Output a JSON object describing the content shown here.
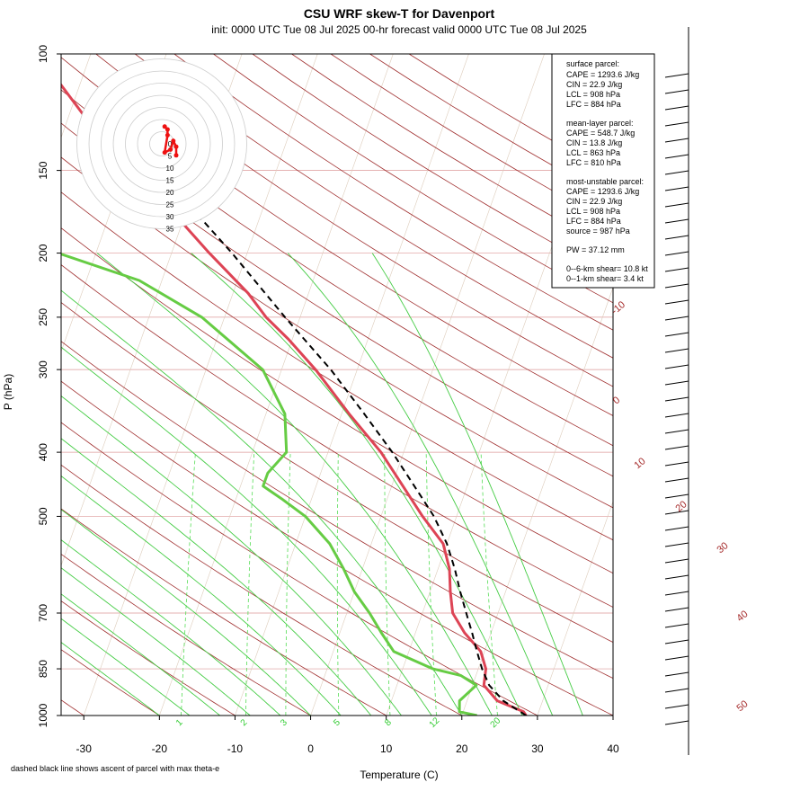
{
  "chart_data": {
    "type": "line",
    "title": "CSU WRF skew-T for Davenport",
    "subtitle": "init: 0000 UTC Tue 08 Jul 2025    00-hr forecast valid 0000 UTC Tue 08 Jul 2025",
    "xlabel": "Temperature (C)",
    "ylabel": "P (hPa)",
    "x_ticks": [
      -30,
      -20,
      -10,
      0,
      10,
      20,
      30,
      40
    ],
    "p_ticks": [
      100,
      150,
      200,
      250,
      300,
      400,
      500,
      700,
      850,
      1000
    ],
    "xlim": [
      -33,
      40
    ],
    "plim": [
      1000,
      100
    ],
    "footnote": "dashed black line shows ascent of parcel with max theta-e",
    "dry_adiabat_labels": [
      "-10",
      "0",
      "10",
      "20",
      "30",
      "40",
      "50"
    ],
    "mixing_ratio_labels": [
      "1",
      "2",
      "3",
      "5",
      "8",
      "12",
      "20"
    ],
    "series": [
      {
        "name": "temperature",
        "color": "#dd4455",
        "points": [
          [
            1000,
            28.5
          ],
          [
            987,
            28.0
          ],
          [
            950,
            24.0
          ],
          [
            900,
            21.5
          ],
          [
            850,
            21.0
          ],
          [
            800,
            19.5
          ],
          [
            750,
            16.5
          ],
          [
            700,
            14.0
          ],
          [
            650,
            12.7
          ],
          [
            600,
            11.5
          ],
          [
            550,
            9.5
          ],
          [
            500,
            5.5
          ],
          [
            450,
            1.5
          ],
          [
            400,
            -3.0
          ],
          [
            350,
            -9.0
          ],
          [
            300,
            -15.5
          ],
          [
            270,
            -20.5
          ],
          [
            250,
            -24.5
          ],
          [
            230,
            -28.0
          ],
          [
            200,
            -35.0
          ],
          [
            180,
            -40.0
          ],
          [
            150,
            -48.0
          ],
          [
            130,
            -56.0
          ],
          [
            110,
            -63.0
          ],
          [
            100,
            -67.0
          ]
        ]
      },
      {
        "name": "dewpoint",
        "color": "#66cc44",
        "points": [
          [
            1000,
            22.0
          ],
          [
            987,
            19.5
          ],
          [
            950,
            19.0
          ],
          [
            900,
            20.5
          ],
          [
            870,
            18.0
          ],
          [
            850,
            14.0
          ],
          [
            800,
            8.0
          ],
          [
            750,
            5.5
          ],
          [
            700,
            3.0
          ],
          [
            650,
            0.0
          ],
          [
            600,
            -2.5
          ],
          [
            550,
            -5.5
          ],
          [
            500,
            -10.0
          ],
          [
            470,
            -14.0
          ],
          [
            450,
            -17.0
          ],
          [
            430,
            -17.0
          ],
          [
            400,
            -15.5
          ],
          [
            350,
            -17.5
          ],
          [
            300,
            -22.5
          ],
          [
            250,
            -33.0
          ],
          [
            220,
            -43.0
          ],
          [
            200,
            -55.0
          ],
          [
            190,
            -65.0
          ],
          [
            180,
            -78.0
          ],
          [
            170,
            -83.0
          ],
          [
            160,
            -85.0
          ]
        ]
      },
      {
        "name": "parcel",
        "color": "#000000",
        "points": [
          [
            1000,
            28.5
          ],
          [
            950,
            24.8
          ],
          [
            900,
            22.2
          ],
          [
            850,
            20.5
          ],
          [
            800,
            19.0
          ],
          [
            750,
            17.5
          ],
          [
            700,
            15.8
          ],
          [
            650,
            14.0
          ],
          [
            600,
            12.2
          ],
          [
            550,
            10.0
          ],
          [
            500,
            7.0
          ],
          [
            450,
            3.0
          ],
          [
            400,
            -1.5
          ],
          [
            350,
            -7.0
          ],
          [
            300,
            -13.5
          ],
          [
            250,
            -22.0
          ],
          [
            200,
            -32.0
          ],
          [
            180,
            -37.0
          ],
          [
            160,
            -43.0
          ]
        ]
      }
    ],
    "indices": {
      "surface": {
        "header": "surface parcel:",
        "cape": "CAPE = 1293.6 J/kg",
        "cin": "CIN = 22.9 J/kg",
        "lcl": "LCL = 908 hPa",
        "lfc": "LFC = 884 hPa"
      },
      "mean_layer": {
        "header": "mean-layer parcel:",
        "cape": "CAPE = 548.7 J/kg",
        "cin": "CIN = 13.8 J/kg",
        "lcl": "LCL = 863 hPa",
        "lfc": "LFC = 810 hPa"
      },
      "most_unstable": {
        "header": "most-unstable parcel:",
        "cape": "CAPE = 1293.6 J/kg",
        "cin": "CIN = 22.9 J/kg",
        "lcl": "LCL = 908 hPa",
        "lfc": "LFC = 884 hPa",
        "source": "source = 987 hPa"
      },
      "pw": "PW =  37.12 mm",
      "shear6": "0--6-km shear= 10.8 kt",
      "shear1": "0--1-km shear= 3.4 kt"
    },
    "hodograph": {
      "ring_labels": [
        "0",
        "5",
        "10",
        "15",
        "20",
        "25",
        "30",
        "35"
      ],
      "points": [
        [
          5,
          -4
        ],
        [
          5,
          -1
        ],
        [
          4,
          1
        ],
        [
          3,
          -2
        ],
        [
          1,
          -3
        ],
        [
          2,
          3
        ],
        [
          2,
          5
        ],
        [
          1,
          6
        ]
      ]
    }
  }
}
